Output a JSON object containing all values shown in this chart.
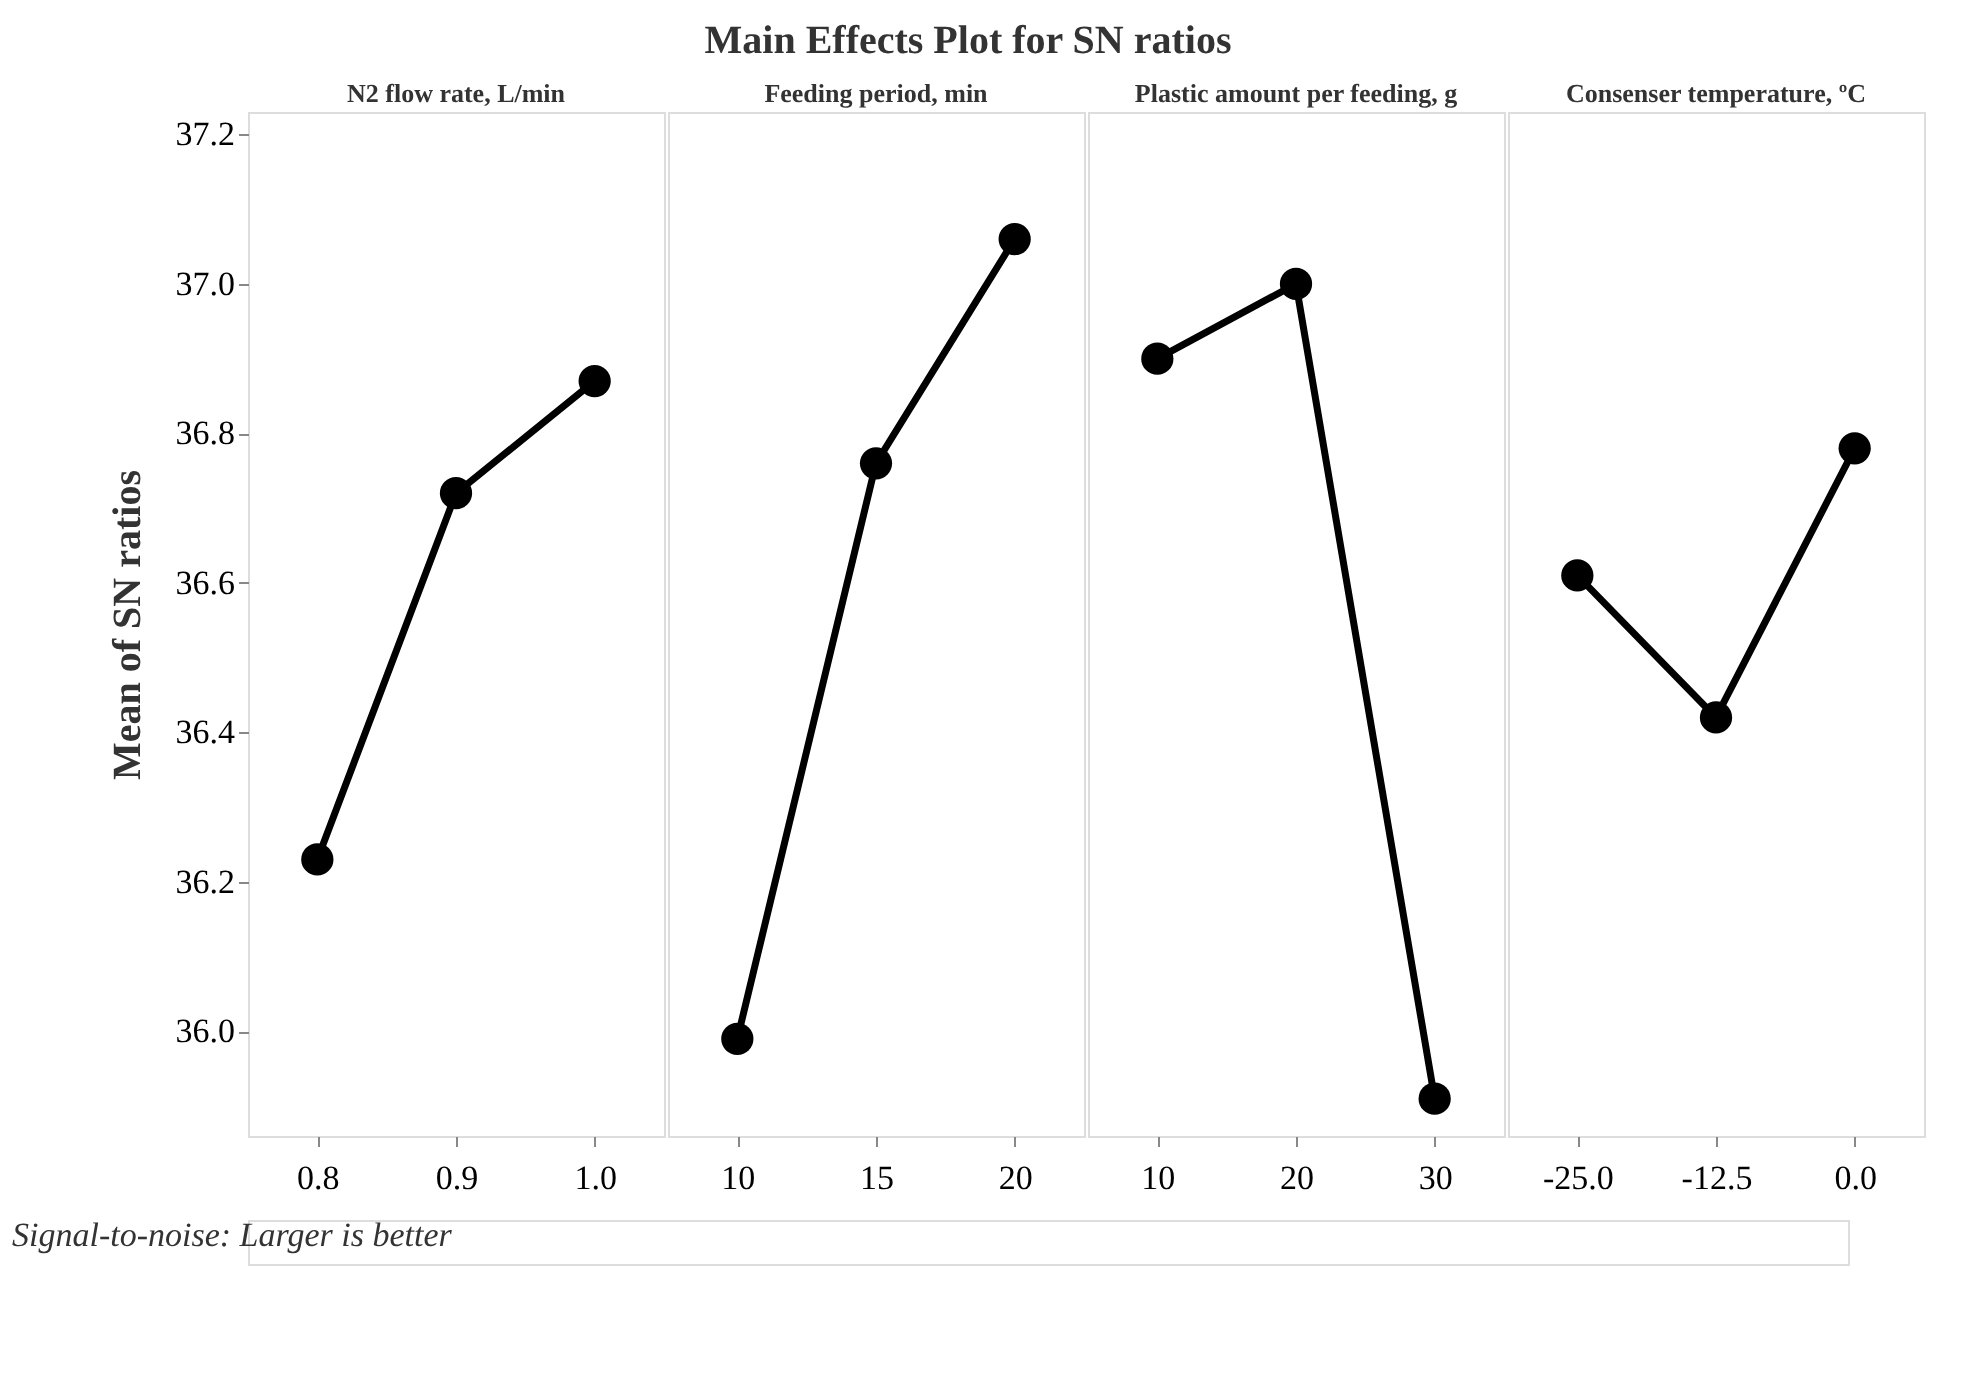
{
  "chart_data": [
    {
      "type": "line",
      "title": "N2 flow rate, L/min",
      "ylabel": "Mean of SN ratios",
      "annotations": [
        "Main Effects Plot for SN ratios",
        "Signal-to-noise: Larger is better"
      ],
      "x": [
        0.8,
        0.9,
        1.0
      ],
      "series": [
        {
          "color": "#000000",
          "values": [
            36.23,
            36.72,
            36.87
          ]
        }
      ],
      "xlim": [
        0.75,
        1.05
      ],
      "xticks": [
        0.8,
        0.9,
        {
          "value": 1,
          "label": "1.0"
        }
      ],
      "ylim": [
        35.86,
        37.23
      ],
      "yticks": [
        {
          "value": 36,
          "label": "36.0"
        },
        36.2,
        36.4,
        36.6,
        36.8,
        {
          "value": 37,
          "label": "37.0"
        },
        37.2
      ],
      "grid": false,
      "marker": "circle",
      "line_style": "solid"
    },
    {
      "type": "line",
      "title": "Feeding period, min",
      "x": [
        10,
        15,
        20
      ],
      "series": [
        {
          "color": "#000000",
          "values": [
            35.99,
            36.76,
            37.06
          ]
        }
      ],
      "xlim": [
        7.5,
        22.5
      ],
      "xticks": [
        10,
        15,
        20
      ],
      "ylim": [
        35.86,
        37.23
      ],
      "tick_labels": "x",
      "grid": false,
      "marker": "circle",
      "line_style": "solid"
    },
    {
      "type": "line",
      "title": "Plastic amount per feeding, g",
      "x": [
        10,
        20,
        30
      ],
      "series": [
        {
          "color": "#000000",
          "values": [
            36.9,
            37.0,
            35.91
          ]
        }
      ],
      "xlim": [
        5,
        35
      ],
      "xticks": [
        10,
        20,
        30
      ],
      "ylim": [
        35.86,
        37.23
      ],
      "tick_labels": "x",
      "grid": false,
      "marker": "circle",
      "line_style": "solid"
    },
    {
      "type": "line",
      "title": "Consenser temperature, ºC",
      "x": [
        -25,
        -12.5,
        0
      ],
      "series": [
        {
          "color": "#000000",
          "values": [
            36.61,
            36.42,
            36.78
          ]
        }
      ],
      "xlim": [
        -31.25,
        6.25
      ],
      "xticks": [
        {
          "value": -25,
          "label": "-25.0"
        },
        -12.5,
        {
          "value": 0,
          "label": "0.0"
        }
      ],
      "ylim": [
        35.86,
        37.23
      ],
      "tick_labels": "x",
      "grid": false,
      "marker": "circle",
      "line_style": "solid"
    }
  ]
}
